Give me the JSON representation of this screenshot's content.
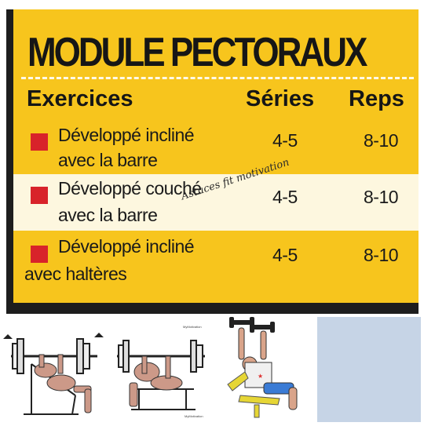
{
  "card": {
    "title": "MODULE PECTORAUX",
    "headers": {
      "exercise": "Exercices",
      "sets": "Séries",
      "reps": "Reps"
    },
    "rows": [
      {
        "line1": "Développé incliné",
        "line2": "avec la barre",
        "sets": "4-5",
        "reps": "8-10"
      },
      {
        "line1": "Développé couché",
        "line2": "avec la barre",
        "sets": "4-5",
        "reps": "8-10"
      },
      {
        "line1": "Développé incliné",
        "line2": "avec haltères",
        "sets": "4-5",
        "reps": "8-10"
      }
    ],
    "watermark": "Astuces fit motivation",
    "accent": "#f7c51d",
    "marker_color": "#d8232a"
  },
  "illustrations": {
    "panel1": "barbell-incline-press-illustration",
    "panel2": "barbell-bench-press-illustration",
    "panel3": "dumbbell-incline-press-illustration",
    "panel4": "blank-panel",
    "credit": "MyMotivation"
  }
}
